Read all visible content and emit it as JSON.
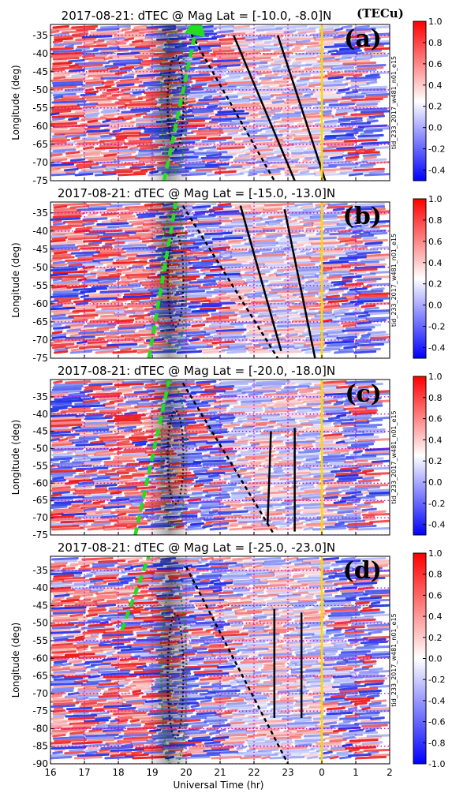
{
  "figure": {
    "units_label": "(TECu)",
    "xlabel": "Universal Time (hr)",
    "ylabel": "Longitude (deg)",
    "side_label": "tid_233_2017_w481_n01_e15",
    "x_tick_labels": [
      "16",
      "17",
      "18",
      "19",
      "20",
      "21",
      "22",
      "23",
      "0",
      "1",
      "2"
    ]
  },
  "chart_data": [
    {
      "type": "heatmap",
      "panel": "(a)",
      "title": "2017-08-21: dTEC @  Mag Lat = [-10.0, -8.0]N",
      "xlabel": "",
      "ylabel": "Longitude (deg)",
      "xlim": [
        16,
        26
      ],
      "ylim": [
        -75,
        -32
      ],
      "y_ticks": [
        -35,
        -40,
        -45,
        -50,
        -55,
        -60,
        -65,
        -70,
        -75
      ],
      "colorbar": {
        "range": [
          -0.5,
          1.0
        ],
        "ticks": [
          "1.0",
          "0.8",
          "0.6",
          "0.4",
          "0.2",
          "0.0",
          "-0.2",
          "-0.4"
        ]
      },
      "grid": true,
      "vertical_marker_ut": 24.0,
      "totality_center_ut": 19.5,
      "green_arrow": [
        [
          19.35,
          -75
        ],
        [
          20.3,
          -33
        ]
      ],
      "black_dashed": [
        [
          20.05,
          -33
        ],
        [
          22.6,
          -75
        ]
      ],
      "black_solid": [
        [
          [
            21.4,
            -35
          ],
          [
            23.2,
            -75
          ]
        ],
        [
          [
            22.7,
            -35
          ],
          [
            24.1,
            -75
          ]
        ]
      ]
    },
    {
      "type": "heatmap",
      "panel": "(b)",
      "title": "2017-08-21: dTEC @  Mag Lat = [-15.0, -13.0]N",
      "xlabel": "",
      "ylabel": "Longitude (deg)",
      "xlim": [
        16,
        26
      ],
      "ylim": [
        -75,
        -32
      ],
      "y_ticks": [
        -35,
        -40,
        -45,
        -50,
        -55,
        -60,
        -65,
        -70,
        -75
      ],
      "colorbar": {
        "range": [
          -0.5,
          1.0
        ],
        "ticks": [
          "1.0",
          "0.8",
          "0.6",
          "0.4",
          "0.2",
          "0.0",
          "-0.2",
          "-0.4"
        ]
      },
      "grid": true,
      "vertical_marker_ut": 24.0,
      "totality_center_ut": 19.5,
      "green_arrow": [
        [
          18.9,
          -75
        ],
        [
          19.7,
          -32
        ]
      ],
      "black_dashed": [
        [
          19.9,
          -33
        ],
        [
          22.7,
          -75
        ]
      ],
      "black_solid": [
        [
          [
            21.6,
            -33
          ],
          [
            22.8,
            -73
          ]
        ],
        [
          [
            22.9,
            -34
          ],
          [
            23.8,
            -75
          ]
        ]
      ]
    },
    {
      "type": "heatmap",
      "panel": "(c)",
      "title": "2017-08-21: dTEC @  Mag Lat = [-20.0, -18.0]N",
      "xlabel": "",
      "ylabel": "Longitude (deg)",
      "xlim": [
        16,
        26
      ],
      "ylim": [
        -75,
        -30
      ],
      "y_ticks": [
        -35,
        -40,
        -45,
        -50,
        -55,
        -60,
        -65,
        -70,
        -75
      ],
      "colorbar": {
        "range": [
          -0.5,
          1.0
        ],
        "ticks": [
          "1.0",
          "0.8",
          "0.6",
          "0.4",
          "0.2",
          "0.0",
          "-0.2",
          "-0.4"
        ]
      },
      "grid": true,
      "vertical_marker_ut": 24.0,
      "totality_center_ut": 19.5,
      "green_arrow": [
        [
          18.5,
          -75
        ],
        [
          19.5,
          -30
        ]
      ],
      "black_dashed": [
        [
          19.9,
          -31
        ],
        [
          22.6,
          -75
        ]
      ],
      "black_solid": [
        [
          [
            22.5,
            -45
          ],
          [
            22.4,
            -72
          ]
        ],
        [
          [
            23.2,
            -44
          ],
          [
            23.2,
            -74
          ]
        ]
      ]
    },
    {
      "type": "heatmap",
      "panel": "(d)",
      "title": "2017-08-21: dTEC @  Mag Lat = [-25.0, -23.0]N",
      "xlabel": "Universal Time (hr)",
      "ylabel": "Longitude (deg)",
      "xlim": [
        16,
        26
      ],
      "ylim": [
        -90,
        -31
      ],
      "y_ticks": [
        -35,
        -40,
        -45,
        -50,
        -55,
        -60,
        -65,
        -70,
        -75,
        -80,
        -85,
        -90
      ],
      "colorbar": {
        "range": [
          -1.0,
          1.0
        ],
        "ticks": [
          "1.0",
          "0.8",
          "0.6",
          "0.4",
          "0.2",
          "0.0",
          "-0.2",
          "-0.4",
          "-0.6",
          "-0.8",
          "-1.0"
        ]
      },
      "grid": true,
      "vertical_marker_ut": 24.0,
      "totality_center_ut": 19.5,
      "green_arrow": [
        [
          18.1,
          -52
        ],
        [
          18.9,
          -31
        ]
      ],
      "black_dashed": [
        [
          20.0,
          -34
        ],
        [
          23.0,
          -90
        ]
      ],
      "black_solid": [
        [
          [
            22.6,
            -46
          ],
          [
            22.6,
            -77
          ]
        ],
        [
          [
            23.4,
            -47
          ],
          [
            23.4,
            -77
          ]
        ]
      ]
    }
  ]
}
